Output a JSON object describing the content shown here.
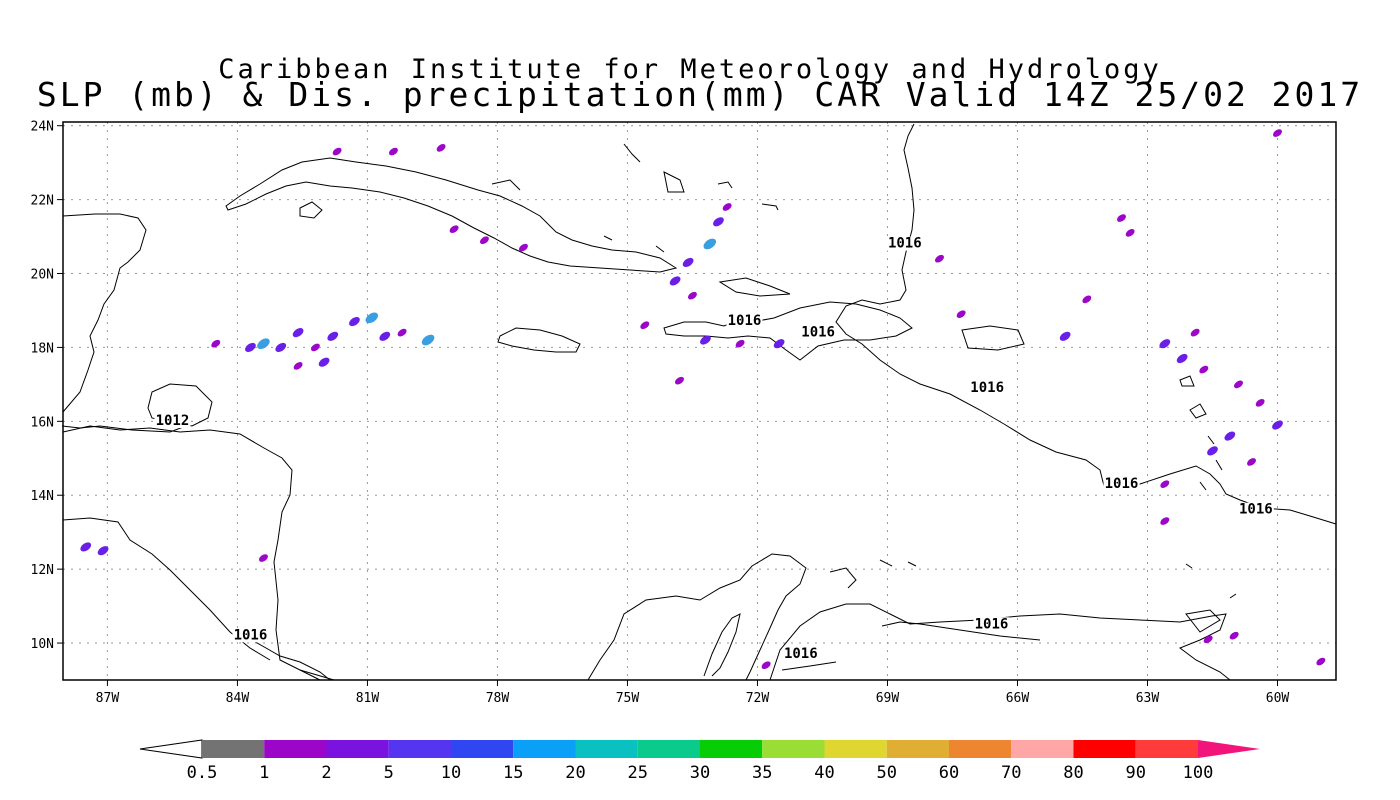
{
  "title": {
    "line1": "Caribbean Institute for Meteorology and Hydrology",
    "line2": "SLP (mb) & Dis. precipitation(mm) CAR Valid 14Z 25/02 2017"
  },
  "map": {
    "lon_range": [
      -88,
      -58.5
    ],
    "lat_range": [
      9,
      24.2
    ],
    "grid": "dotted",
    "x_ticks": [
      {
        "lon": -87,
        "label": "87W"
      },
      {
        "lon": -84,
        "label": "84W"
      },
      {
        "lon": -81,
        "label": "81W"
      },
      {
        "lon": -78,
        "label": "78W"
      },
      {
        "lon": -75,
        "label": "75W"
      },
      {
        "lon": -72,
        "label": "72W"
      },
      {
        "lon": -69,
        "label": "69W"
      },
      {
        "lon": -66,
        "label": "66W"
      },
      {
        "lon": -63,
        "label": "63W"
      },
      {
        "lon": -60,
        "label": "60W"
      }
    ],
    "y_ticks": [
      {
        "lat": 24,
        "label": "24N"
      },
      {
        "lat": 22,
        "label": "22N"
      },
      {
        "lat": 20,
        "label": "20N"
      },
      {
        "lat": 18,
        "label": "18N"
      },
      {
        "lat": 16,
        "label": "16N"
      },
      {
        "lat": 14,
        "label": "14N"
      },
      {
        "lat": 12,
        "label": "12N"
      },
      {
        "lat": 10,
        "label": "10N"
      }
    ],
    "isobar_labels": [
      {
        "text": "1016",
        "lon": -68.6,
        "lat": 20.7
      },
      {
        "text": "1016",
        "lon": -72.3,
        "lat": 18.6
      },
      {
        "text": "1016",
        "lon": -70.6,
        "lat": 18.3
      },
      {
        "text": "1016",
        "lon": -66.7,
        "lat": 16.8
      },
      {
        "text": "1012",
        "lon": -85.5,
        "lat": 15.9
      },
      {
        "text": "1016",
        "lon": -63.6,
        "lat": 14.2
      },
      {
        "text": "1016",
        "lon": -60.5,
        "lat": 13.5
      },
      {
        "text": "1016",
        "lon": -83.7,
        "lat": 10.1
      },
      {
        "text": "1016",
        "lon": -66.6,
        "lat": 10.4
      },
      {
        "text": "1016",
        "lon": -71.0,
        "lat": 9.6
      }
    ],
    "precip_patches": [
      {
        "lon": -84.5,
        "lat": 18.1,
        "c": 1
      },
      {
        "lon": -83.7,
        "lat": 18.0,
        "c": 2
      },
      {
        "lon": -83.4,
        "lat": 18.1,
        "c": 3
      },
      {
        "lon": -83.0,
        "lat": 18.0,
        "c": 2
      },
      {
        "lon": -82.6,
        "lat": 18.4,
        "c": 2
      },
      {
        "lon": -82.2,
        "lat": 18.0,
        "c": 1
      },
      {
        "lon": -82.0,
        "lat": 17.6,
        "c": 2
      },
      {
        "lon": -82.6,
        "lat": 17.5,
        "c": 1
      },
      {
        "lon": -81.8,
        "lat": 18.3,
        "c": 2
      },
      {
        "lon": -81.3,
        "lat": 18.7,
        "c": 2
      },
      {
        "lon": -80.9,
        "lat": 18.8,
        "c": 3
      },
      {
        "lon": -80.6,
        "lat": 18.3,
        "c": 2
      },
      {
        "lon": -80.2,
        "lat": 18.4,
        "c": 1
      },
      {
        "lon": -79.6,
        "lat": 18.2,
        "c": 3
      },
      {
        "lon": -81.7,
        "lat": 23.3,
        "c": 1
      },
      {
        "lon": -79.3,
        "lat": 23.4,
        "c": 1
      },
      {
        "lon": -80.4,
        "lat": 23.3,
        "c": 1
      },
      {
        "lon": -79.0,
        "lat": 21.2,
        "c": 1
      },
      {
        "lon": -78.3,
        "lat": 20.9,
        "c": 1
      },
      {
        "lon": -77.4,
        "lat": 20.7,
        "c": 1
      },
      {
        "lon": -73.9,
        "lat": 19.8,
        "c": 2
      },
      {
        "lon": -73.6,
        "lat": 20.3,
        "c": 2
      },
      {
        "lon": -73.1,
        "lat": 20.8,
        "c": 3
      },
      {
        "lon": -72.9,
        "lat": 21.4,
        "c": 2
      },
      {
        "lon": -72.7,
        "lat": 21.8,
        "c": 1
      },
      {
        "lon": -73.5,
        "lat": 19.4,
        "c": 1
      },
      {
        "lon": -74.6,
        "lat": 18.6,
        "c": 1
      },
      {
        "lon": -73.2,
        "lat": 18.2,
        "c": 2
      },
      {
        "lon": -72.4,
        "lat": 18.1,
        "c": 1
      },
      {
        "lon": -71.5,
        "lat": 18.1,
        "c": 2
      },
      {
        "lon": -73.8,
        "lat": 17.1,
        "c": 1
      },
      {
        "lon": -67.8,
        "lat": 20.4,
        "c": 1
      },
      {
        "lon": -67.3,
        "lat": 18.9,
        "c": 1
      },
      {
        "lon": -64.9,
        "lat": 18.3,
        "c": 2
      },
      {
        "lon": -64.4,
        "lat": 19.3,
        "c": 1
      },
      {
        "lon": -63.4,
        "lat": 21.1,
        "c": 1
      },
      {
        "lon": -63.6,
        "lat": 21.5,
        "c": 1
      },
      {
        "lon": -62.2,
        "lat": 17.7,
        "c": 2
      },
      {
        "lon": -62.6,
        "lat": 18.1,
        "c": 2
      },
      {
        "lon": -61.9,
        "lat": 18.4,
        "c": 1
      },
      {
        "lon": -61.7,
        "lat": 17.4,
        "c": 1
      },
      {
        "lon": -60.9,
        "lat": 17.0,
        "c": 1
      },
      {
        "lon": -60.4,
        "lat": 16.5,
        "c": 1
      },
      {
        "lon": -61.5,
        "lat": 15.2,
        "c": 2
      },
      {
        "lon": -61.1,
        "lat": 15.6,
        "c": 2
      },
      {
        "lon": -60.0,
        "lat": 15.9,
        "c": 2
      },
      {
        "lon": -60.6,
        "lat": 14.9,
        "c": 1
      },
      {
        "lon": -62.6,
        "lat": 14.3,
        "c": 1
      },
      {
        "lon": -62.6,
        "lat": 13.3,
        "c": 1
      },
      {
        "lon": -60.0,
        "lat": 23.8,
        "c": 1
      },
      {
        "lon": -87.5,
        "lat": 12.6,
        "c": 2
      },
      {
        "lon": -87.1,
        "lat": 12.5,
        "c": 2
      },
      {
        "lon": -83.4,
        "lat": 12.3,
        "c": 1
      },
      {
        "lon": -71.8,
        "lat": 9.4,
        "c": 1
      },
      {
        "lon": -61.6,
        "lat": 10.1,
        "c": 1
      },
      {
        "lon": -61.0,
        "lat": 10.2,
        "c": 1
      },
      {
        "lon": -59.0,
        "lat": 9.5,
        "c": 1
      }
    ]
  },
  "colorbar": {
    "labels": [
      "0.5",
      "1",
      "2",
      "5",
      "10",
      "15",
      "20",
      "25",
      "30",
      "35",
      "40",
      "50",
      "60",
      "70",
      "80",
      "90",
      "100"
    ],
    "colors": [
      "#ffffff",
      "#737373",
      "#9b06c8",
      "#7a12e0",
      "#5535f0",
      "#2f46f2",
      "#0aa0f7",
      "#0ac1c1",
      "#0acb8c",
      "#06cd06",
      "#9ade35",
      "#e0d630",
      "#e0ae32",
      "#ee8531",
      "#ffa6a6",
      "#ff0000",
      "#ff3b3b",
      "#f2147a"
    ]
  }
}
